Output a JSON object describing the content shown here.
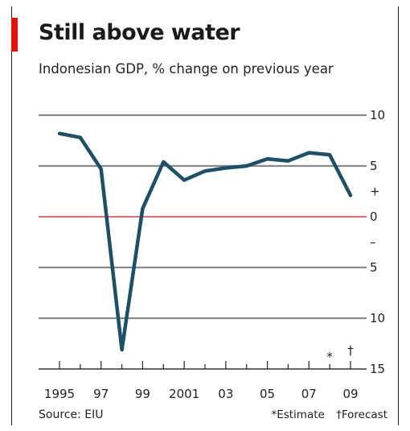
{
  "chart_data": {
    "type": "line",
    "title": "Still above water",
    "subtitle": "Indonesian GDP, % change on previous year",
    "xlabel": "",
    "ylabel": "",
    "x": [
      1995,
      1996,
      1997,
      1998,
      1999,
      2000,
      2001,
      2002,
      2003,
      2004,
      2005,
      2006,
      2007,
      2008,
      2009
    ],
    "series": [
      {
        "values": [
          8.2,
          7.8,
          4.7,
          -13.1,
          0.8,
          5.4,
          3.6,
          4.5,
          4.8,
          5.0,
          5.7,
          5.5,
          6.3,
          6.1,
          2.1
        ]
      }
    ],
    "x_tick_labels": [
      "1995",
      "97",
      "99",
      "2001",
      "03",
      "05",
      "07",
      "09"
    ],
    "x_tick_label_years": [
      1995,
      1997,
      1999,
      2001,
      2003,
      2005,
      2007,
      2009
    ],
    "y_tick_labels": [
      "10",
      "5",
      "+",
      "0",
      "–",
      "5",
      "10",
      "15"
    ],
    "y_tick_values": [
      10,
      5,
      2.5,
      0,
      -2.5,
      -5,
      -10,
      -15
    ],
    "gridlines": [
      10,
      5,
      0,
      -5,
      -10
    ],
    "ylim": [
      -15,
      10
    ],
    "xlim": [
      1995,
      2009
    ],
    "grid": true,
    "annotations": {
      "estimate_mark": "*",
      "forecast_mark": "†"
    },
    "source": "Source: EIU",
    "notes": {
      "estimate": "*Estimate",
      "forecast": "†Forecast"
    },
    "colors": {
      "line": "#1a5068",
      "grid": "#888888",
      "zero": "#e3120b",
      "accent": "#e3120b"
    }
  }
}
